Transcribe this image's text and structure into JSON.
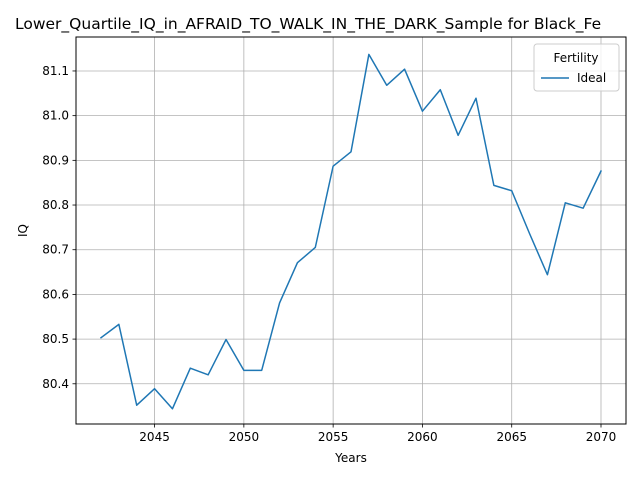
{
  "chart_data": {
    "type": "line",
    "title": "Lower_Quartile_IQ_in_AFRAID_TO_WALK_IN_THE_DARK_Sample for Black_Fe",
    "xlabel": "Years",
    "ylabel": "IQ",
    "xlim": [
      2040.6,
      2071.4
    ],
    "ylim": [
      80.31,
      81.176
    ],
    "x_ticks": [
      2045,
      2050,
      2055,
      2060,
      2065,
      2070
    ],
    "y_ticks": [
      80.4,
      80.5,
      80.6,
      80.7,
      80.8,
      80.9,
      81.0,
      81.1
    ],
    "grid": true,
    "legend": {
      "title": "Fertility",
      "placement": "top-right"
    },
    "series": [
      {
        "name": "Ideal",
        "color": "#1f77b4",
        "x": [
          2042,
          2043,
          2044,
          2045,
          2046,
          2047,
          2048,
          2049,
          2050,
          2051,
          2052,
          2053,
          2054,
          2055,
          2056,
          2057,
          2058,
          2059,
          2060,
          2061,
          2062,
          2063,
          2064,
          2065,
          2066,
          2067,
          2068,
          2069,
          2070
        ],
        "y": [
          80.503,
          80.533,
          80.352,
          80.389,
          80.344,
          80.435,
          80.42,
          80.499,
          80.43,
          80.43,
          80.581,
          80.671,
          80.705,
          80.887,
          80.919,
          81.137,
          81.068,
          81.104,
          81.01,
          81.058,
          80.956,
          81.039,
          80.844,
          80.832,
          80.736,
          80.644,
          80.805,
          80.793,
          80.876
        ]
      }
    ]
  }
}
